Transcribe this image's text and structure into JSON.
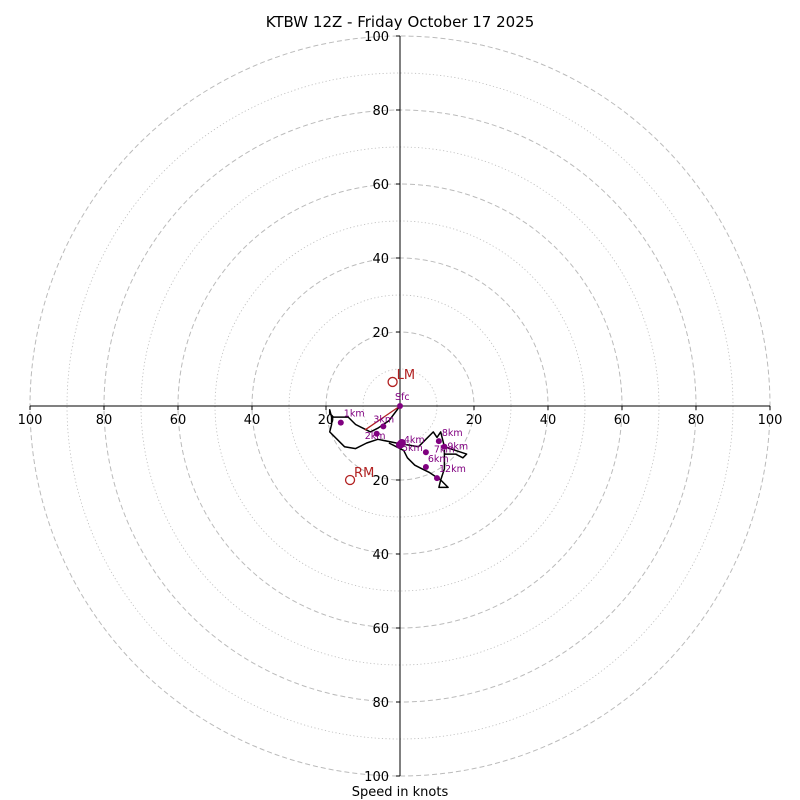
{
  "chart_data": {
    "type": "hodograph",
    "title": "KTBW 12Z - Friday October 17 2025",
    "xlabel": "Speed in knots",
    "axis_range": [
      -100,
      100
    ],
    "ring_step_major": 20,
    "ring_step_minor": 10,
    "x_tick_labels": [
      "100",
      "80",
      "60",
      "40",
      "20",
      "20",
      "40",
      "60",
      "80",
      "100"
    ],
    "y_tick_labels": [
      "100",
      "80",
      "60",
      "40",
      "20",
      "20",
      "40",
      "60",
      "80",
      "100"
    ],
    "colors": {
      "trace": "#000000",
      "height_marker": "#800080",
      "storm_motion": "#b22222",
      "grid": "#bbbbbb"
    },
    "trace": [
      [
        0,
        0
      ],
      [
        -3,
        -4
      ],
      [
        -6,
        -6
      ],
      [
        -8,
        -7
      ],
      [
        -10,
        -6
      ],
      [
        -12,
        -5
      ],
      [
        -14,
        -3
      ],
      [
        -18,
        -3
      ],
      [
        -19,
        -2
      ],
      [
        -19,
        -1
      ],
      [
        -18.5,
        -3
      ],
      [
        -18.5,
        -5
      ],
      [
        -19,
        -7
      ],
      [
        -15,
        -11
      ],
      [
        -12,
        -11.5
      ],
      [
        -9,
        -10
      ],
      [
        -6,
        -9
      ],
      [
        -1,
        -10
      ],
      [
        5,
        -11
      ],
      [
        7,
        -9
      ],
      [
        9,
        -7
      ],
      [
        10,
        -8.5
      ],
      [
        11,
        -7
      ],
      [
        12,
        -11
      ],
      [
        15,
        -12
      ],
      [
        18,
        -13
      ],
      [
        17,
        -14
      ],
      [
        15,
        -13
      ],
      [
        12,
        -13
      ],
      [
        12,
        -12
      ],
      [
        12,
        -17
      ],
      [
        11,
        -20
      ],
      [
        13,
        -22
      ],
      [
        10.5,
        -22
      ],
      [
        11,
        -20
      ],
      [
        8,
        -18
      ],
      [
        6,
        -17
      ],
      [
        4,
        -16
      ],
      [
        2,
        -14
      ],
      [
        1,
        -12
      ],
      [
        -1,
        -11
      ],
      [
        -3,
        -10
      ]
    ],
    "height_markers": [
      {
        "label": "Sfc",
        "u": 0,
        "v": 0
      },
      {
        "label": "1km",
        "u": -16,
        "v": -4.5
      },
      {
        "label": "2km",
        "u": -6.3,
        "v": -7.5
      },
      {
        "label": "3km",
        "u": -4.5,
        "v": -5.5
      },
      {
        "label": "4km",
        "u": 0.5,
        "v": -10
      },
      {
        "label": "5km",
        "u": 0,
        "v": -10.5
      },
      {
        "label": "6km",
        "u": 7,
        "v": -16.5
      },
      {
        "label": "7km",
        "u": 7,
        "v": -12.5
      },
      {
        "label": "8km",
        "u": 10.5,
        "v": -9.5
      },
      {
        "label": "9km",
        "u": 12,
        "v": -11
      },
      {
        "label": "12km",
        "u": 10,
        "v": -19.5
      }
    ],
    "storm_motion": [
      {
        "label": "LM",
        "u": -2,
        "v": 6.5
      },
      {
        "label": "RM",
        "u": -13.5,
        "v": -20
      }
    ],
    "shear_vector": {
      "u": -9.5,
      "v": -6.5
    }
  }
}
